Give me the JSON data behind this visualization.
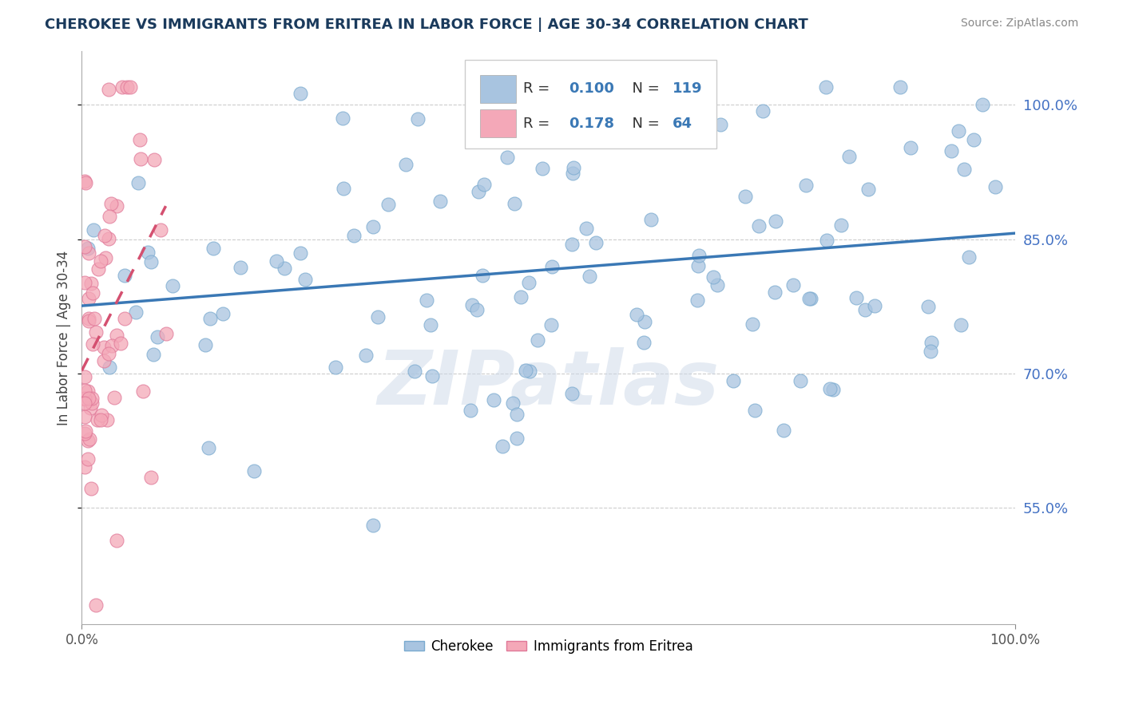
{
  "title": "CHEROKEE VS IMMIGRANTS FROM ERITREA IN LABOR FORCE | AGE 30-34 CORRELATION CHART",
  "source": "Source: ZipAtlas.com",
  "ylabel": "In Labor Force | Age 30-34",
  "watermark": "ZIPatlas",
  "cherokee_color": "#a8c4e0",
  "cherokee_edge_color": "#7aaacf",
  "eritrea_color": "#f4a8b8",
  "eritrea_edge_color": "#e07898",
  "cherokee_line_color": "#3a78b5",
  "eritrea_line_color": "#d45070",
  "eritrea_line_dash": "dashed",
  "legend_label1": "Cherokee",
  "legend_label2": "Immigrants from Eritrea",
  "xlim": [
    0.0,
    1.0
  ],
  "ylim": [
    0.42,
    1.06
  ],
  "yticks": [
    0.55,
    0.7,
    0.85,
    1.0
  ],
  "ytick_labels": [
    "55.0%",
    "70.0%",
    "85.0%",
    "100.0%"
  ],
  "xticks": [
    0.0,
    1.0
  ],
  "xtick_labels": [
    "0.0%",
    "100.0%"
  ],
  "legend_R1": "0.100",
  "legend_N1": "119",
  "legend_R2": "0.178",
  "legend_N2": "64"
}
